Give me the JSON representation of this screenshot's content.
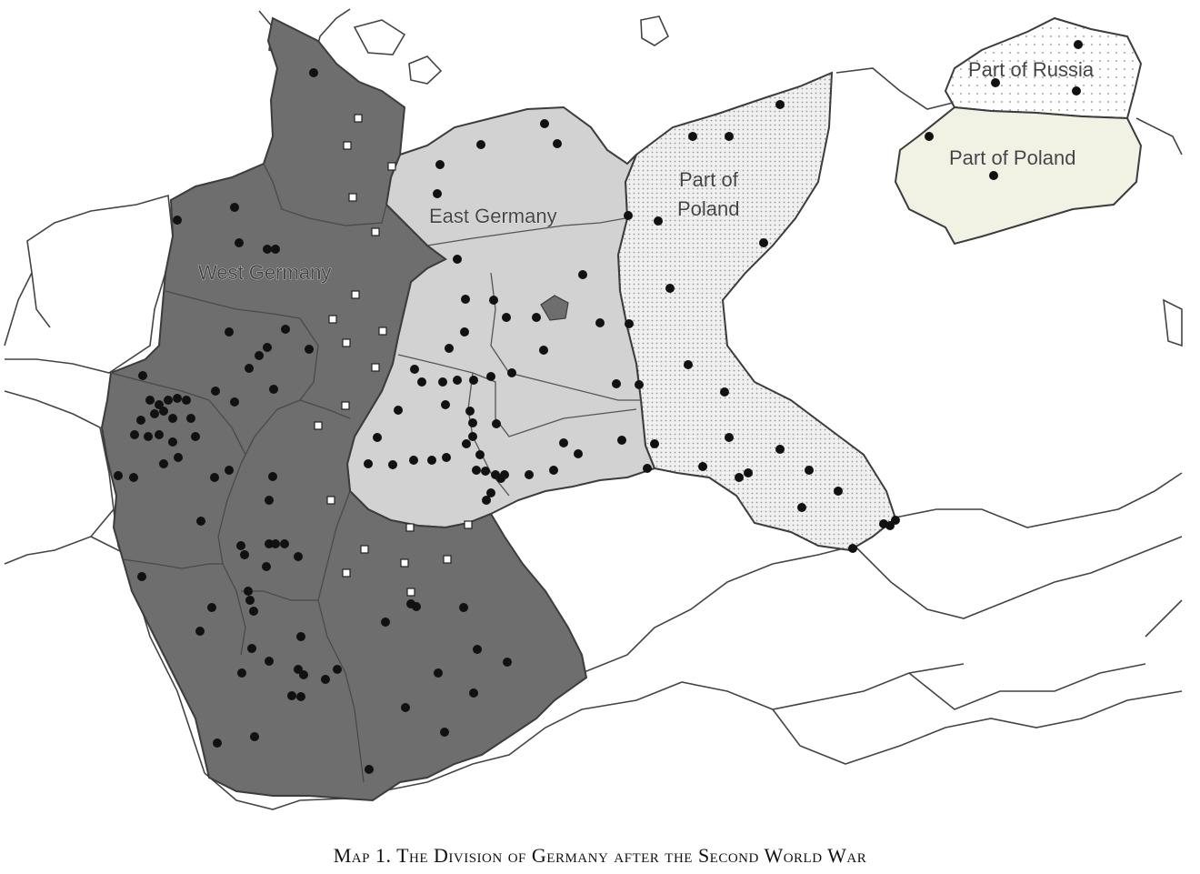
{
  "map": {
    "labels": {
      "west_germany": "West Germany",
      "east_germany": "East Germany",
      "poland_pomerania_line1": "Part of",
      "poland_pomerania_line2": "Poland",
      "russia": "Part of Russia",
      "poland_east_prussia": "Part of Poland"
    },
    "colors": {
      "west_germany": "#6e6e6e",
      "east_germany": "#d2d2d2",
      "part_of_poland": "#f1f1e4",
      "part_of_russia": "#ffffff",
      "border": "#3c3c3c",
      "marker_dot": "#111111",
      "marker_square": "#ffffff"
    },
    "marker_types": [
      "filled-circle",
      "white-square"
    ]
  },
  "caption": "Map 1. The Division of Germany after the Second World War"
}
